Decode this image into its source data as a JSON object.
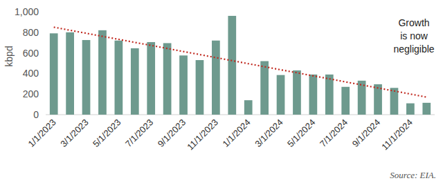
{
  "chart_data": {
    "type": "bar",
    "y_label": "kbpd",
    "annotation": [
      "Growth",
      "is now",
      "negligible"
    ],
    "source": "Source: EIA.",
    "categories": [
      "1/1/2023",
      null,
      "3/1/2023",
      null,
      "5/1/2023",
      null,
      "7/1/2023",
      null,
      "9/1/2023",
      null,
      "11/1/2023",
      null,
      "1/1/2024",
      null,
      "3/1/2024",
      null,
      "5/1/2024",
      null,
      "7/1/2024",
      null,
      "9/1/2024",
      null,
      "11/1/2024",
      null
    ],
    "series": [
      {
        "color": "#6e9a8e",
        "values": [
          790,
          800,
          725,
          820,
          720,
          645,
          705,
          695,
          575,
          530,
          720,
          960,
          140,
          520,
          385,
          430,
          390,
          390,
          270,
          330,
          295,
          260,
          110,
          115
        ]
      },
      {
        "type": "line",
        "line_style": "dotted",
        "color": "#c0281e",
        "values": [
          850,
          820,
          791,
          761,
          732,
          702,
          673,
          643,
          613,
          584,
          554,
          525,
          495,
          466,
          436,
          407,
          377,
          348,
          318,
          289,
          259,
          230,
          200,
          170
        ]
      }
    ],
    "ylim": [
      0,
      1000
    ],
    "yticks": [
      0,
      200,
      400,
      600,
      800,
      {
        "value": 1000,
        "label": "1,000"
      }
    ],
    "grid": false
  }
}
